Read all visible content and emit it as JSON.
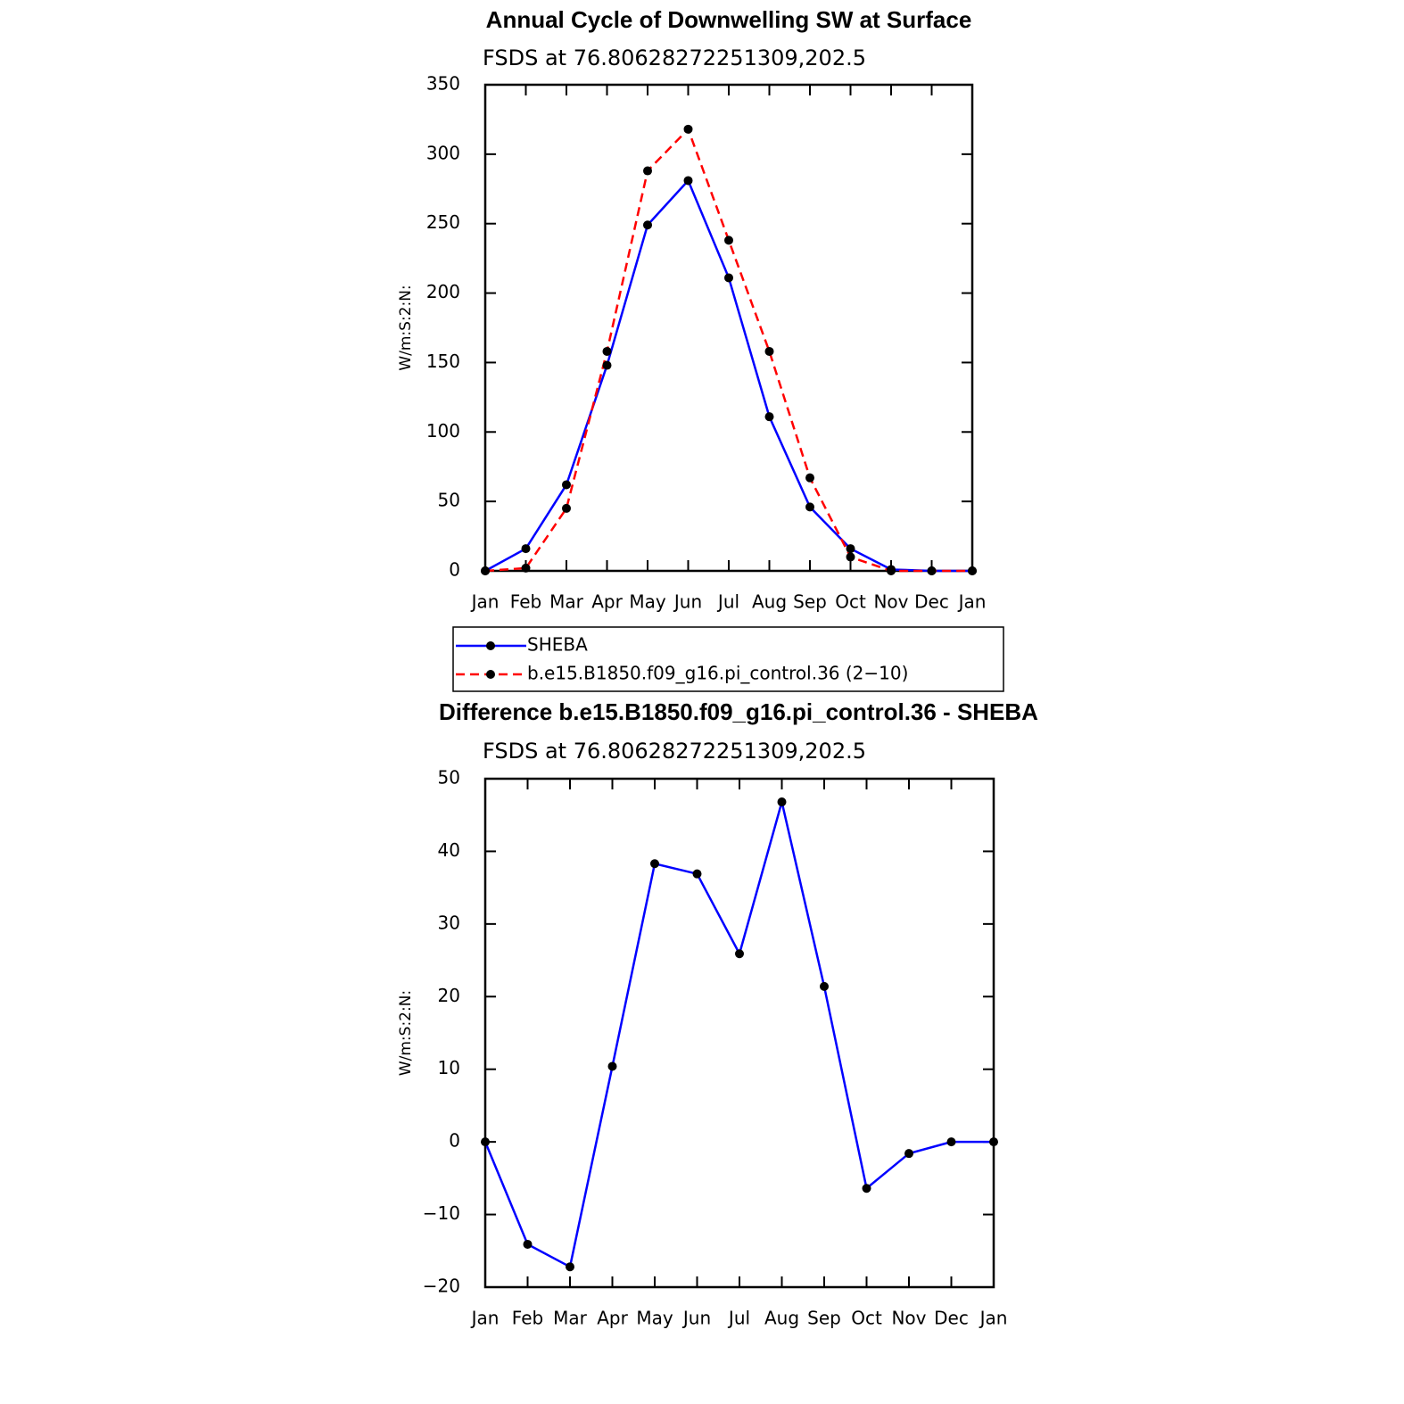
{
  "chart_data": [
    {
      "type": "line",
      "title": "Annual Cycle of Downwelling SW at Surface",
      "subtitle": "FSDS at 76.80628272251309,202.5",
      "y_label": "W/m:S:2:N:",
      "categories": [
        "Jan",
        "Feb",
        "Mar",
        "Apr",
        "May",
        "Jun",
        "Jul",
        "Aug",
        "Sep",
        "Oct",
        "Nov",
        "Dec",
        "Jan"
      ],
      "series": [
        {
          "name": "SHEBA",
          "color": "#0000ff",
          "dashed": false,
          "values": [
            0,
            16,
            62,
            148,
            249,
            281,
            211,
            111,
            46,
            16,
            1,
            0,
            0
          ]
        },
        {
          "name": "b.e15.B1850.f09_g16.pi_control.36 (2−10)",
          "color": "#ff0000",
          "dashed": true,
          "values": [
            0,
            2,
            45,
            158,
            288,
            318,
            238,
            158,
            67,
            10,
            0,
            0,
            0
          ]
        }
      ],
      "ylim": [
        0,
        350
      ],
      "yticks": [
        0,
        50,
        100,
        150,
        200,
        250,
        300,
        350
      ],
      "legend": "below"
    },
    {
      "type": "line",
      "title": "Difference b.e15.B1850.f09_g16.pi_control.36 - SHEBA",
      "subtitle": "FSDS at 76.80628272251309,202.5",
      "y_label": "W/m:S:2:N:",
      "categories": [
        "Jan",
        "Feb",
        "Mar",
        "Apr",
        "May",
        "Jun",
        "Jul",
        "Aug",
        "Sep",
        "Oct",
        "Nov",
        "Dec",
        "Jan"
      ],
      "series": [
        {
          "color": "#0000ff",
          "dashed": false,
          "values": [
            0,
            -14.1,
            -17.2,
            10.4,
            38.3,
            36.9,
            25.9,
            46.8,
            21.4,
            -6.4,
            -1.6,
            0,
            0
          ]
        }
      ],
      "ylim": [
        -20,
        50
      ],
      "yticks": [
        {
          "value": -20,
          "label": "−20"
        },
        {
          "value": -10,
          "label": "−10"
        },
        0,
        10,
        20,
        30,
        40,
        50
      ]
    }
  ]
}
